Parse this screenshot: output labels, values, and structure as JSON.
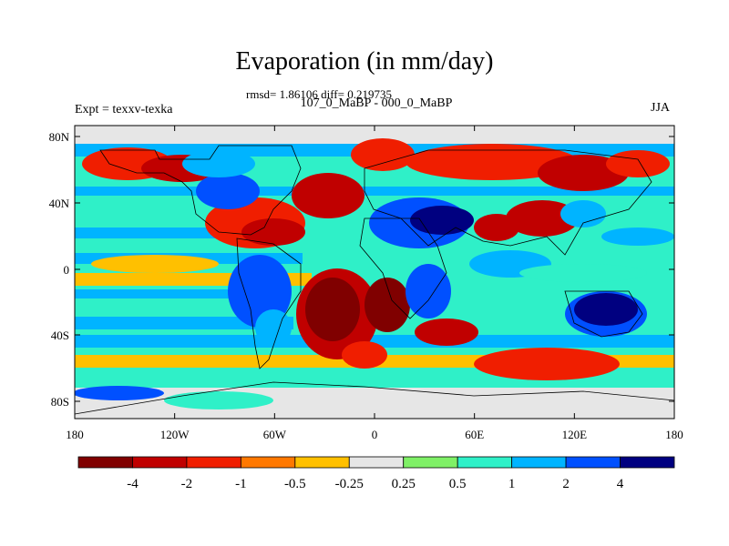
{
  "map": {
    "title": "Evaporation (in mm/day)",
    "stats": "rmsd= 1.86106 diff= 0.219735",
    "subtitle": "107_0_MaBP - 000_0_MaBP",
    "left_label": "Expt = texxv-texka",
    "right_label": "JJA",
    "lon_ticks": [
      "180",
      "120W",
      "60W",
      "0",
      "60E",
      "120E",
      "180"
    ],
    "lat_ticks": [
      "80N",
      "40N",
      "0",
      "40S",
      "80S"
    ],
    "lon_range": [
      -180,
      180
    ],
    "lat_range": [
      -90,
      90
    ],
    "land_mask_color": "#e6e6e6",
    "colorbar": {
      "colors": [
        "#800000",
        "#c00000",
        "#f01e00",
        "#ff7800",
        "#ffc000",
        "#e6e6e6",
        "#7ff066",
        "#2ff0c8",
        "#00b4ff",
        "#0050ff",
        "#000080"
      ],
      "labels": [
        "-4",
        "-2",
        "-1",
        "-0.5",
        "-0.25",
        "0.25",
        "0.5",
        "1",
        "2",
        "4"
      ]
    }
  }
}
